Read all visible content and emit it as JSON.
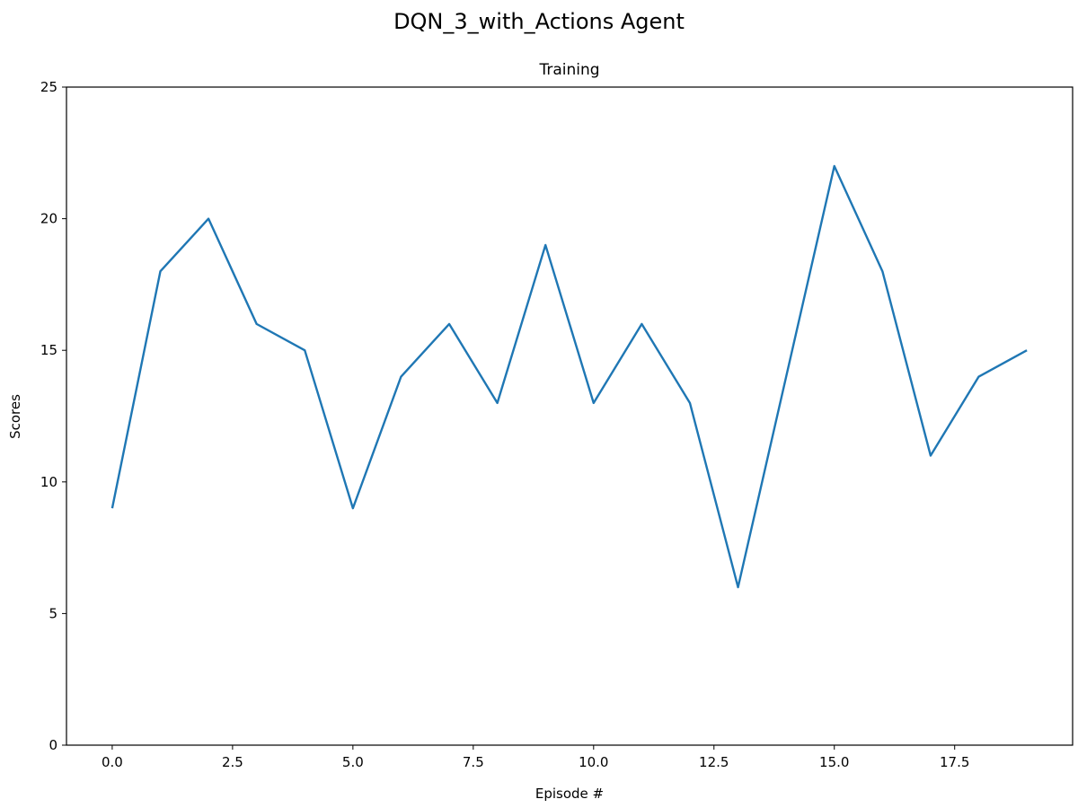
{
  "chart_data": {
    "type": "line",
    "suptitle": "DQN_3_with_Actions Agent",
    "title": "Training",
    "xlabel": "Episode #",
    "ylabel": "Scores",
    "xlim": [
      -0.95,
      19.95
    ],
    "ylim": [
      0,
      25
    ],
    "xticks": [
      0.0,
      2.5,
      5.0,
      7.5,
      10.0,
      12.5,
      15.0,
      17.5
    ],
    "xtick_labels": [
      "0.0",
      "2.5",
      "5.0",
      "7.5",
      "10.0",
      "12.5",
      "15.0",
      "17.5"
    ],
    "yticks": [
      0,
      5,
      10,
      15,
      20,
      25
    ],
    "ytick_labels": [
      "0",
      "5",
      "10",
      "15",
      "20",
      "25"
    ],
    "grid": false,
    "series": [
      {
        "color": "#1f77b4",
        "x": [
          0,
          1,
          2,
          3,
          4,
          5,
          6,
          7,
          8,
          9,
          10,
          11,
          12,
          13,
          14,
          15,
          16,
          17,
          18,
          19
        ],
        "y": [
          9,
          18,
          20,
          16,
          15,
          9,
          14,
          16,
          13,
          19,
          13,
          16,
          13,
          6,
          14,
          22,
          18,
          11,
          14,
          15
        ]
      }
    ]
  }
}
